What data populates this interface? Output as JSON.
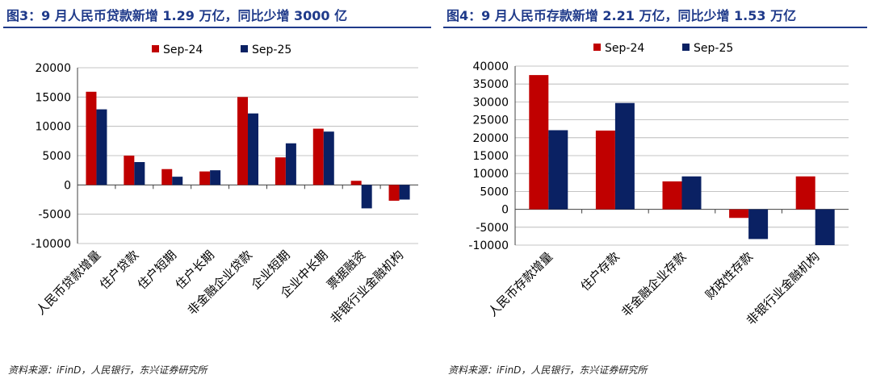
{
  "colors": {
    "sep24": "#c00000",
    "sep25": "#0a2163",
    "title": "#1f3a8a",
    "grid": "#b0b0b0"
  },
  "left": {
    "title": "图3：9 月人民币贷款新增 1.29 万亿，同比少增 3000 亿",
    "source": "资料来源：iFinD，人民银行，东兴证券研究所"
  },
  "right": {
    "title": "图4：9 月人民币存款新增 2.21 万亿，同比少增 1.53 万亿",
    "source": "资料来源：iFinD，人民银行，东兴证券研究所"
  },
  "chart_data": [
    {
      "type": "bar",
      "title": "图3：9 月人民币贷款新增 1.29 万亿，同比少增 3000 亿",
      "categories": [
        "人民币贷款增量",
        "住户贷款",
        "住户短期",
        "住户长期",
        "非金融企业贷款",
        "企业短期",
        "企业中长期",
        "票据融资",
        "非银行业金融机构"
      ],
      "series": [
        {
          "name": "Sep-24",
          "values": [
            15900,
            5000,
            2700,
            2300,
            15000,
            4700,
            9600,
            700,
            -2700
          ]
        },
        {
          "name": "Sep-25",
          "values": [
            12900,
            3900,
            1400,
            2500,
            12200,
            7100,
            9100,
            -4000,
            -2500
          ]
        }
      ],
      "ylim": [
        -10000,
        20000
      ],
      "yticks": [
        -10000,
        -5000,
        0,
        5000,
        10000,
        15000,
        20000
      ],
      "legend": "top",
      "grid": true
    },
    {
      "type": "bar",
      "title": "图4：9 月人民币存款新增 2.21 万亿，同比少增 1.53 万亿",
      "categories": [
        "人民币存款增量",
        "住户存款",
        "非金融企业存款",
        "财政性存款",
        "非银行业金融机构"
      ],
      "series": [
        {
          "name": "Sep-24",
          "values": [
            37500,
            22000,
            7800,
            -2400,
            9200
          ]
        },
        {
          "name": "Sep-25",
          "values": [
            22100,
            29700,
            9200,
            -8300,
            -10000
          ]
        }
      ],
      "ylim": [
        -10000,
        40000
      ],
      "yticks": [
        -10000,
        -5000,
        0,
        5000,
        10000,
        15000,
        20000,
        25000,
        30000,
        35000,
        40000
      ],
      "legend": "top",
      "grid": true
    }
  ]
}
